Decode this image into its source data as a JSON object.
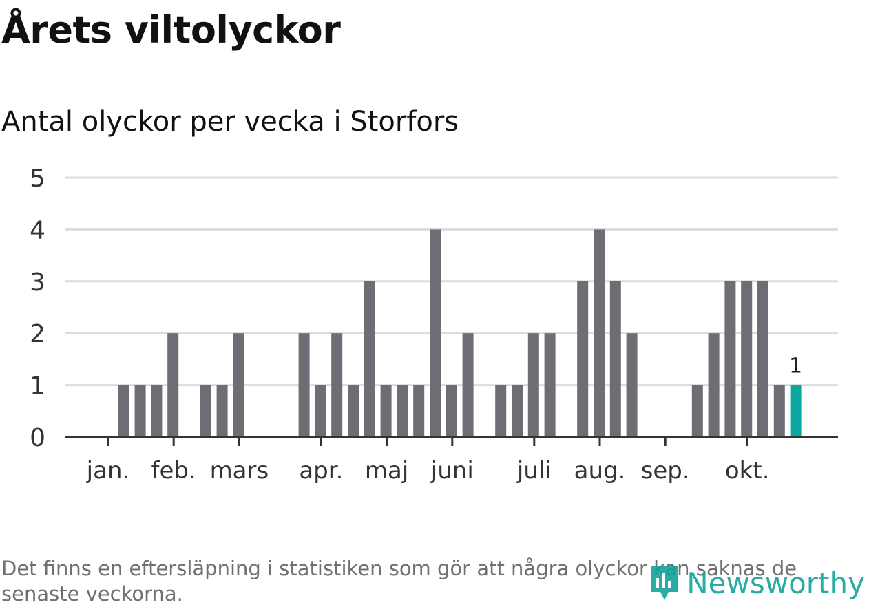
{
  "header": {
    "title": "Årets viltolyckor",
    "subtitle": "Antal olyckor per vecka i Storfors"
  },
  "footnote": "Det finns en eftersläpning i statistiken som gör att några olyckor kan saknas de senaste veckorna.",
  "logo": {
    "text": "Newsworthy",
    "icon": "bar-chart-pin-icon"
  },
  "colors": {
    "bar": "#6e6d73",
    "highlight": "#0ca8a0",
    "grid": "#dcdcdc",
    "axis": "#333333"
  },
  "chart_data": {
    "type": "bar",
    "title": "Antal olyckor per vecka i Storfors",
    "xlabel": "",
    "ylabel": "",
    "ylim": [
      0,
      5
    ],
    "yticks": [
      0,
      1,
      2,
      3,
      4,
      5
    ],
    "weeks": [
      1,
      2,
      3,
      4,
      5,
      6,
      7,
      8,
      9,
      10,
      11,
      12,
      13,
      14,
      15,
      16,
      17,
      18,
      19,
      20,
      21,
      22,
      23,
      24,
      25,
      26,
      27,
      28,
      29,
      30,
      31,
      32,
      33,
      34,
      35,
      36,
      37,
      38,
      39,
      40,
      41,
      42,
      43
    ],
    "values": [
      0,
      1,
      1,
      1,
      2,
      0,
      1,
      1,
      2,
      0,
      0,
      0,
      2,
      1,
      2,
      1,
      3,
      1,
      1,
      1,
      4,
      1,
      2,
      0,
      1,
      1,
      2,
      2,
      0,
      3,
      4,
      3,
      2,
      0,
      0,
      0,
      1,
      2,
      3,
      3,
      3,
      1,
      1
    ],
    "highlight_last": true,
    "last_label": "1",
    "month_ticks": [
      {
        "label": "jan.",
        "week": 1
      },
      {
        "label": "feb.",
        "week": 5
      },
      {
        "label": "mars",
        "week": 9
      },
      {
        "label": "apr.",
        "week": 14
      },
      {
        "label": "maj",
        "week": 18
      },
      {
        "label": "juni",
        "week": 22
      },
      {
        "label": "juli",
        "week": 27
      },
      {
        "label": "aug.",
        "week": 31
      },
      {
        "label": "sep.",
        "week": 35
      },
      {
        "label": "okt.",
        "week": 40
      }
    ],
    "grid": true
  }
}
